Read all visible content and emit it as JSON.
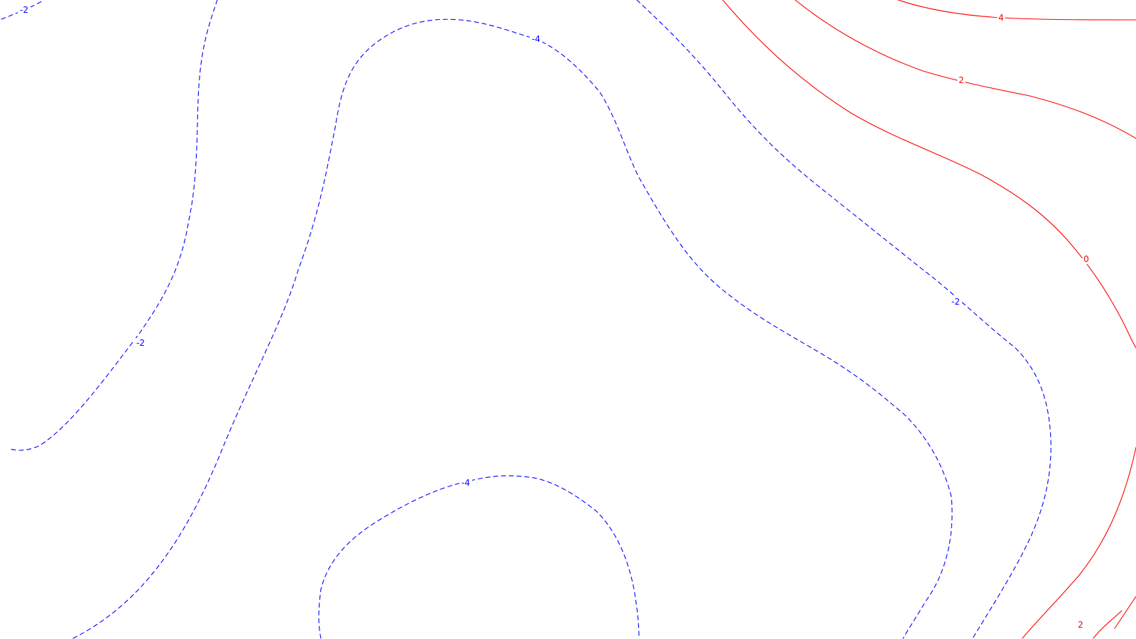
{
  "map": {
    "colors": {
      "background": "#ffffff",
      "positive_contour": "#ff0000",
      "negative_contour": "#0000ff"
    },
    "line_styles": {
      "positive": "solid",
      "negative": "dashed"
    },
    "contour_levels": [
      {
        "id": "neg-2-northwest",
        "level": -2,
        "label": "-2",
        "sign": "negative"
      },
      {
        "id": "neg-2-west",
        "level": -2,
        "label": "-2",
        "sign": "negative"
      },
      {
        "id": "neg-4-north",
        "level": -4,
        "label": "-4",
        "sign": "negative"
      },
      {
        "id": "neg-4-south",
        "level": -4,
        "label": "-4",
        "sign": "negative"
      },
      {
        "id": "neg-2-east",
        "level": -2,
        "label": "-2",
        "sign": "negative"
      },
      {
        "id": "pos-0",
        "level": 0,
        "label": "0",
        "sign": "positive"
      },
      {
        "id": "pos-2-north",
        "level": 2,
        "label": "2",
        "sign": "positive"
      },
      {
        "id": "pos-4-north",
        "level": 4,
        "label": "4",
        "sign": "positive"
      },
      {
        "id": "pos-2-southeast",
        "level": 2,
        "label": "2",
        "sign": "positive"
      }
    ]
  }
}
